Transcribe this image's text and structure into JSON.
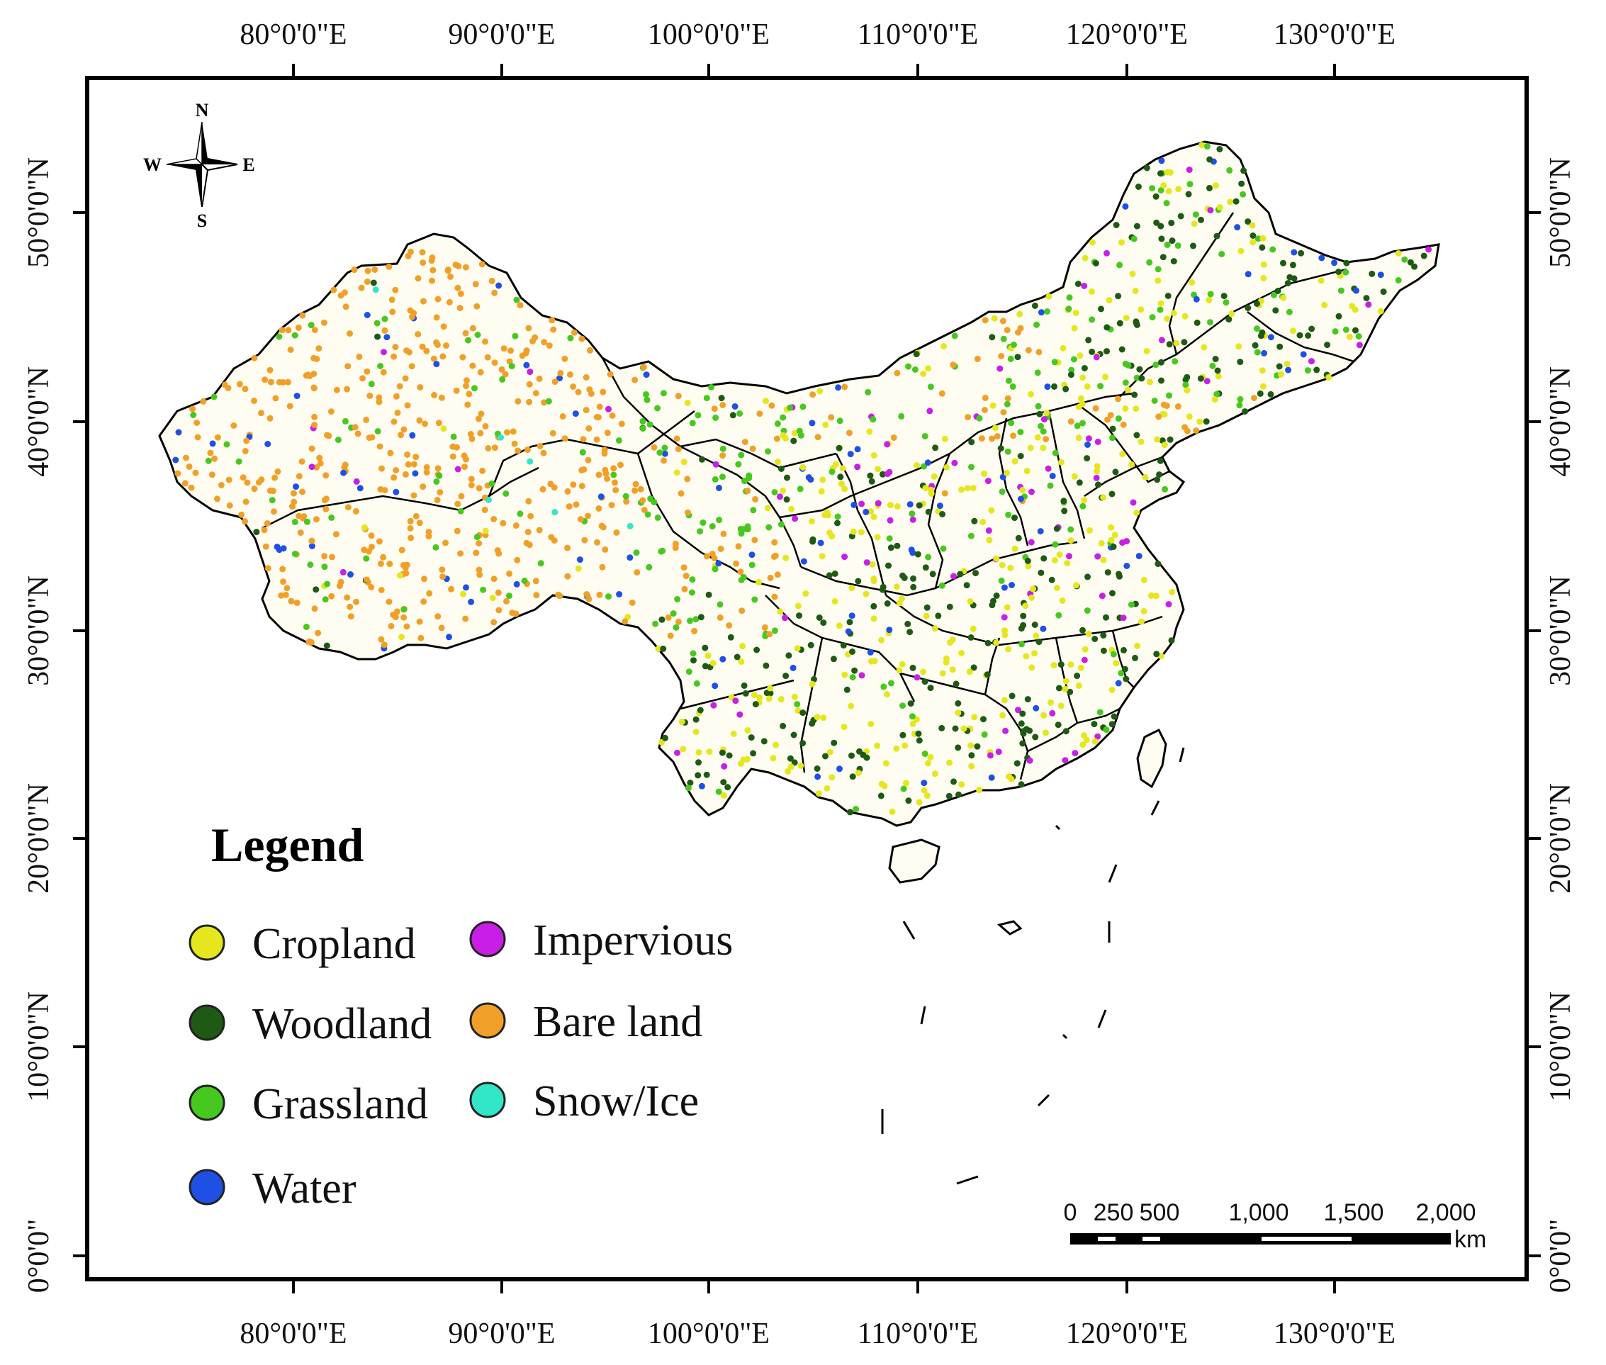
{
  "map": {
    "axes": {
      "longitude_ticks": [
        "80°0'0\"E",
        "90°0'0\"E",
        "100°0'0\"E",
        "110°0'0\"E",
        "120°0'0\"E",
        "130°0'0\"E"
      ],
      "latitude_ticks": [
        "50°0'0\"N",
        "40°0'0\"N",
        "30°0'0\"N",
        "20°0'0\"N",
        "10°0'0\"N",
        "0°0'0\""
      ]
    },
    "compass": {
      "n": "N",
      "s": "S",
      "e": "E",
      "w": "W",
      "icon": "compass-rose-icon"
    },
    "legend": {
      "title": "Legend",
      "items": [
        {
          "label": "Cropland",
          "color": "#e6e61e"
        },
        {
          "label": "Woodland",
          "color": "#1e5a14"
        },
        {
          "label": "Grassland",
          "color": "#46c81e"
        },
        {
          "label": "Water",
          "color": "#1e50e6"
        },
        {
          "label": "Impervious",
          "color": "#c81ee6"
        },
        {
          "label": "Bare land",
          "color": "#f0a028"
        },
        {
          "label": "Snow/Ice",
          "color": "#32e6c8"
        }
      ]
    },
    "scale_bar": {
      "labels": [
        "0",
        "250",
        "500",
        "1,000",
        "1,500",
        "2,000"
      ],
      "unit": "km"
    }
  }
}
